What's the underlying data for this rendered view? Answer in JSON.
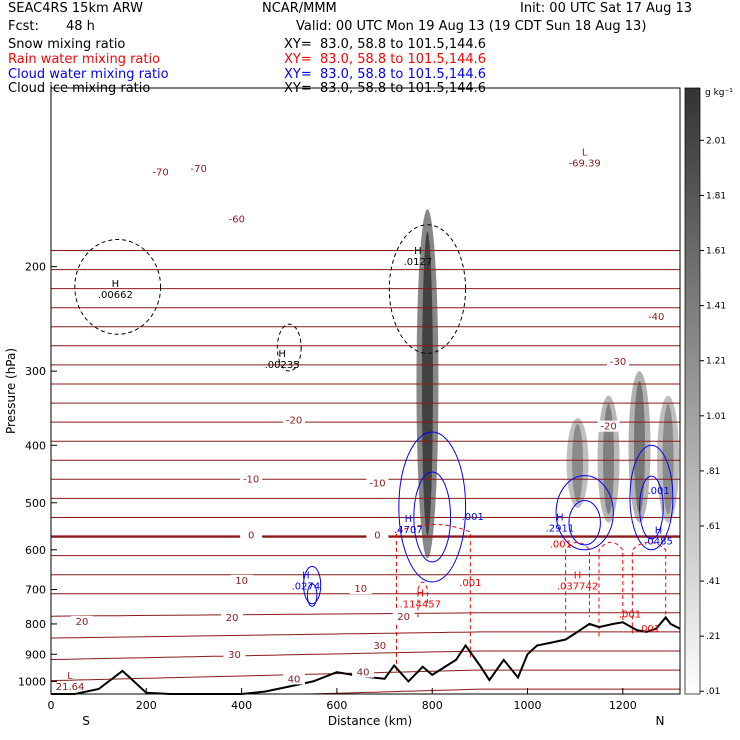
{
  "header": {
    "model": "SEAC4RS 15km ARW",
    "org": "NCAR/MMM",
    "init": "Init: 00 UTC Sat 17 Aug 13",
    "fcst_label": "Fcst:",
    "fcst_value": "48 h",
    "valid": "Valid: 00 UTC Mon 19 Aug 13 (19 CDT Sun 18 Aug 13)",
    "fields": [
      {
        "name": "Snow mixing ratio",
        "xy": "XY=  83.0, 58.8 to 101.5,144.6",
        "color": "#000000"
      },
      {
        "name": "Rain water mixing ratio",
        "xy": "XY=  83.0, 58.8 to 101.5,144.6",
        "color": "#ff0000"
      },
      {
        "name": "Cloud water mixing ratio",
        "xy": "XY=  83.0, 58.8 to 101.5,144.6",
        "color": "#0000ff"
      },
      {
        "name": "Cloud ice mixing ratio",
        "xy": "XY=  83.0, 58.8 to 101.5,144.6",
        "color": "#000000"
      }
    ]
  },
  "chart_data": {
    "type": "heatmap",
    "xlabel": "Distance (km)",
    "ylabel": "Pressure (hPa)",
    "xlim": [
      0,
      1320
    ],
    "ylim": [
      1050,
      100
    ],
    "y_log_scale": true,
    "x_ticks": [
      "0",
      "200",
      "400",
      "600",
      "800",
      "1000",
      "1200"
    ],
    "x_tick_values": [
      0,
      200,
      400,
      600,
      800,
      1000,
      1200
    ],
    "y_ticks": [
      "200",
      "300",
      "400",
      "500",
      "600",
      "700",
      "800",
      "900",
      "1000"
    ],
    "y_tick_values": [
      200,
      300,
      400,
      500,
      600,
      700,
      800,
      900,
      1000
    ],
    "endpoint_labels": {
      "left": "S",
      "right": "N"
    },
    "colorbar": {
      "unit": "g kg⁻¹",
      "labels": [
        "2.01",
        "1.81",
        "1.61",
        "1.41",
        "1.21",
        "1.01",
        ".81",
        ".61",
        ".41",
        ".21",
        ".01"
      ],
      "values": [
        2.01,
        1.81,
        1.61,
        1.41,
        1.21,
        1.01,
        0.81,
        0.61,
        0.41,
        0.21,
        0.01
      ]
    },
    "temperature_contours_degC": {
      "color": "#8b1a1a",
      "labels": [
        {
          "text": "-70",
          "x": 230,
          "p": 140
        },
        {
          "text": "-70",
          "x": 310,
          "p": 138
        },
        {
          "text": "-60",
          "x": 390,
          "p": 168
        },
        {
          "text": "-40",
          "x": 1270,
          "p": 245
        },
        {
          "text": "-30",
          "x": 1190,
          "p": 292
        },
        {
          "text": "-20",
          "x": 510,
          "p": 366
        },
        {
          "text": "-20",
          "x": 1170,
          "p": 375
        },
        {
          "text": "-10",
          "x": 420,
          "p": 460
        },
        {
          "text": "-10",
          "x": 685,
          "p": 468
        },
        {
          "text": "0",
          "x": 420,
          "p": 572
        },
        {
          "text": "0",
          "x": 685,
          "p": 572
        },
        {
          "text": "10",
          "x": 400,
          "p": 682
        },
        {
          "text": "10",
          "x": 650,
          "p": 704
        },
        {
          "text": "20",
          "x": 65,
          "p": 800
        },
        {
          "text": "20",
          "x": 380,
          "p": 788
        },
        {
          "text": "20",
          "x": 740,
          "p": 785
        },
        {
          "text": "30",
          "x": 690,
          "p": 878
        },
        {
          "text": "30",
          "x": 385,
          "p": 910
        },
        {
          "text": "40",
          "x": 655,
          "p": 974
        },
        {
          "text": "40",
          "x": 510,
          "p": 1000
        }
      ]
    },
    "extrema_labels": [
      {
        "type": "L",
        "value": "-69.39",
        "x": 1120,
        "p": 135,
        "color": "#8b1a1a"
      },
      {
        "type": "H",
        "value": ".00662",
        "x": 135,
        "p": 225,
        "color": "#000000"
      },
      {
        "type": "H",
        "value": ".00235",
        "x": 485,
        "p": 295,
        "color": "#000000"
      },
      {
        "type": "H",
        "value": ".0127",
        "x": 770,
        "p": 198,
        "color": "#000000"
      },
      {
        "type": "H",
        "value": ".4707",
        "x": 750,
        "p": 560,
        "color": "#0000ff"
      },
      {
        "type": "H",
        "value": ".2911",
        "x": 1068,
        "p": 557,
        "color": "#0000ff"
      },
      {
        "type": "H",
        "value": ".0485",
        "x": 1275,
        "p": 585,
        "color": "#0000ff"
      },
      {
        "type": "H",
        "value": ".0274",
        "x": 535,
        "p": 697,
        "color": "#0000ff"
      },
      {
        "type": "H",
        "value": ".037742",
        "x": 1105,
        "p": 697,
        "color": "#ff0000"
      },
      {
        "type": "H",
        "value": ".114457",
        "x": 775,
        "p": 748,
        "color": "#ff0000"
      },
      {
        "type": "L",
        "value": "21.64",
        "x": 40,
        "p": 1030,
        "color": "#8b1a1a"
      }
    ],
    "contour_value_labels": [
      {
        "text": ".001",
        "x": 885,
        "p": 535,
        "color": "#0000ff"
      },
      {
        "text": ".001",
        "x": 1275,
        "p": 483,
        "color": "#0000ff"
      },
      {
        "text": ".001",
        "x": 880,
        "p": 690,
        "color": "#ff0000"
      },
      {
        "text": ".001",
        "x": 1215,
        "p": 780,
        "color": "#ff0000"
      },
      {
        "text": ".001",
        "x": 1255,
        "p": 825,
        "color": "#ff0000"
      },
      {
        "text": ".001",
        "x": 1070,
        "p": 595,
        "color": "#ff0000"
      }
    ],
    "terrain_pressure_hPa": {
      "x": [
        0,
        50,
        100,
        150,
        200,
        250,
        300,
        350,
        400,
        450,
        500,
        550,
        600,
        650,
        700,
        720,
        750,
        780,
        800,
        850,
        870,
        900,
        920,
        950,
        980,
        1000,
        1020,
        1050,
        1080,
        1100,
        1130,
        1150,
        1180,
        1200,
        1230,
        1250,
        1270,
        1290,
        1300,
        1320
      ],
      "p": [
        1050,
        1050,
        1030,
        960,
        1045,
        1050,
        1050,
        1050,
        1050,
        1040,
        1020,
        1000,
        965,
        980,
        990,
        940,
        1000,
        945,
        975,
        920,
        870,
        940,
        995,
        920,
        985,
        900,
        870,
        860,
        850,
        830,
        800,
        810,
        800,
        795,
        820,
        825,
        815,
        780,
        800,
        815
      ]
    },
    "snow_plumes": [
      {
        "x": 790,
        "p_top": 160,
        "p_bottom": 620,
        "intensity": 0.85
      },
      {
        "x": 1105,
        "p_top": 360,
        "p_bottom": 510,
        "intensity": 0.45
      },
      {
        "x": 1170,
        "p_top": 330,
        "p_bottom": 540,
        "intensity": 0.5
      },
      {
        "x": 1235,
        "p_top": 300,
        "p_bottom": 540,
        "intensity": 0.55
      },
      {
        "x": 1295,
        "p_top": 330,
        "p_bottom": 540,
        "intensity": 0.45
      }
    ]
  }
}
